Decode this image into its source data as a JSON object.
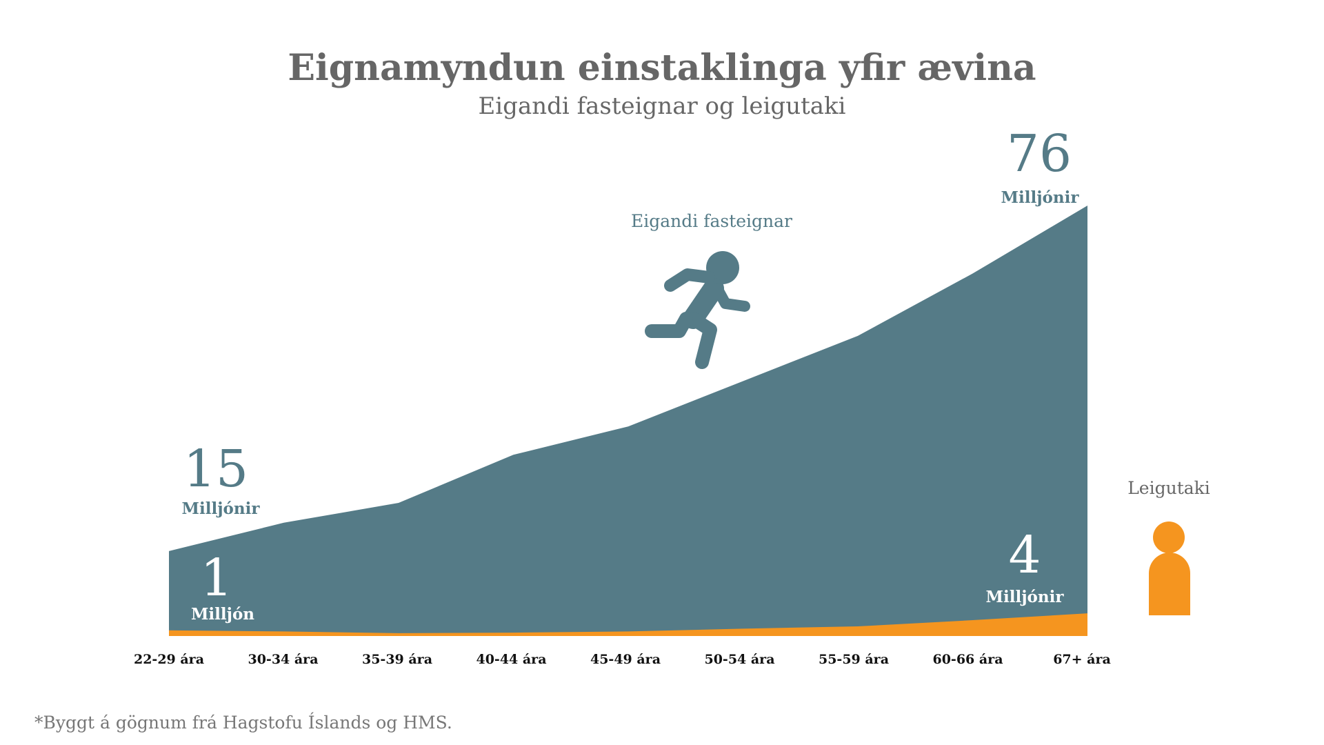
{
  "title": "Eignamyndun einstaklinga yfir ævina",
  "subtitle": "Eigandi fasteignar og leigutaki",
  "footnote": "*Byggt á gögnum frá Hagstofu Íslands og HMS.",
  "colors": {
    "owner": "#557b87",
    "renter": "#f5951f",
    "text": "#666666"
  },
  "icons": {
    "owner": "running-person-icon",
    "renter": "person-icon"
  },
  "chart_data": {
    "type": "area",
    "title": "Eignamyndun einstaklinga yfir ævina",
    "subtitle": "Eigandi fasteignar og leigutaki",
    "xlabel": "",
    "ylabel": "Milljónir",
    "categories": [
      "22-29 ára",
      "30-34 ára",
      "35-39 ára",
      "40-44 ára",
      "45-49 ára",
      "50-54 ára",
      "55-59 ára",
      "60-66 ára",
      "67+ ára"
    ],
    "series": [
      {
        "name": "Eigandi fasteignar",
        "values": [
          15,
          20,
          23.5,
          32,
          37,
          45,
          53,
          64,
          76
        ]
      },
      {
        "name": "Leigutaki",
        "values": [
          1,
          0.8,
          0.5,
          0.6,
          0.8,
          1.3,
          1.7,
          2.8,
          4
        ]
      }
    ],
    "ylim": [
      0,
      80
    ],
    "grid": false,
    "annotations": {
      "owner_start": {
        "value": "15",
        "unit": "Milljónir"
      },
      "owner_end": {
        "value": "76",
        "unit": "Milljónir"
      },
      "renter_start": {
        "value": "1",
        "unit": "Milljón"
      },
      "renter_end": {
        "value": "4",
        "unit": "Milljónir"
      }
    },
    "legend": {
      "owner": "Eigandi fasteignar",
      "renter": "Leigutaki"
    }
  }
}
